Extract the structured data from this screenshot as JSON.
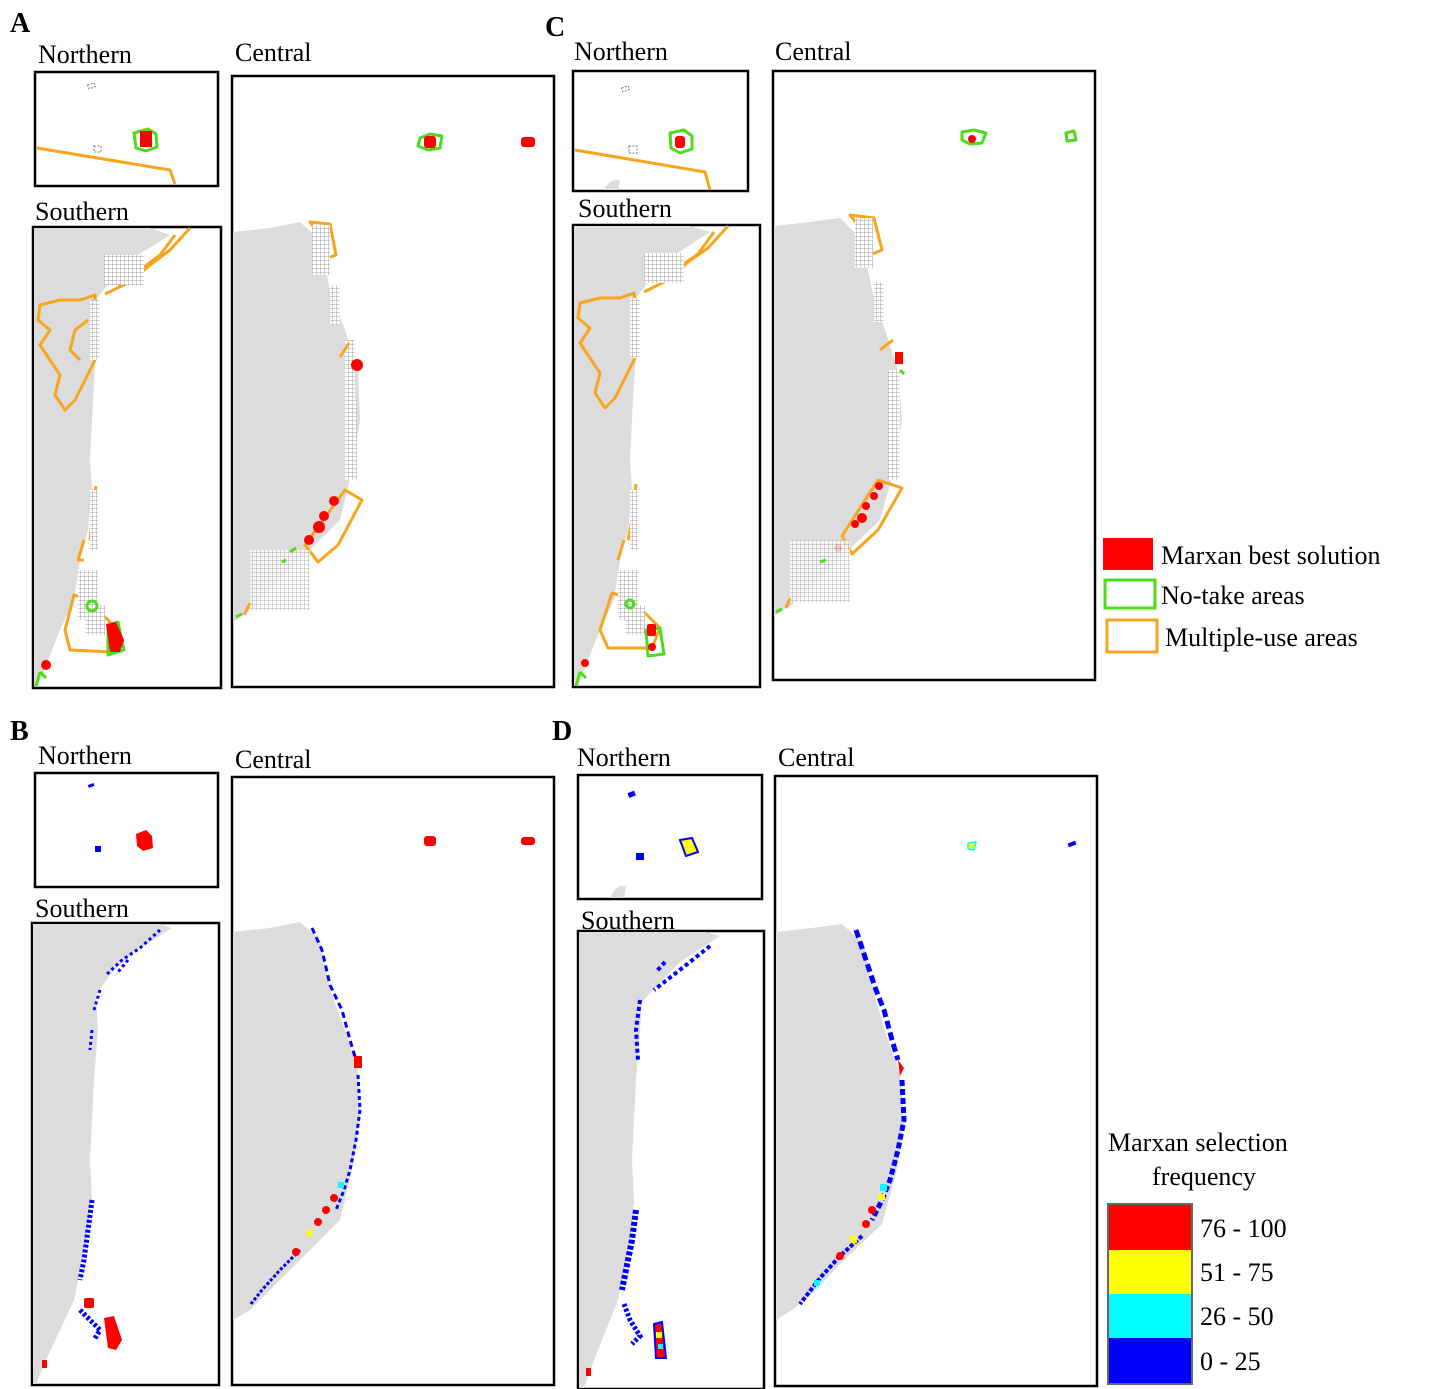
{
  "panels": [
    {
      "id": "A",
      "letter": "A",
      "northern": "Northern",
      "southern": "Southern",
      "central": "Central"
    },
    {
      "id": "B",
      "letter": "B",
      "northern": "Northern",
      "southern": "Southern",
      "central": "Central"
    },
    {
      "id": "C",
      "letter": "C",
      "northern": "Northern",
      "southern": "Southern",
      "central": "Central"
    },
    {
      "id": "D",
      "letter": "D",
      "northern": "Northern",
      "southern": "Southern",
      "central": "Central"
    }
  ],
  "legend_solution": {
    "items": [
      {
        "label": "Marxan best solution",
        "color": "#ff0000"
      },
      {
        "label": "No-take areas",
        "color": "#4cdc19"
      },
      {
        "label": "Multiple-use areas",
        "color": "#f7a51d"
      }
    ]
  },
  "legend_frequency": {
    "title_line1": "Marxan selection",
    "title_line2": "frequency",
    "classes": [
      {
        "label": "76 - 100",
        "color": "#ff0000"
      },
      {
        "label": "51 - 75",
        "color": "#ffff00"
      },
      {
        "label": "26 - 50",
        "color": "#00ffff"
      },
      {
        "label": "0 - 25",
        "color": "#0000ff"
      }
    ]
  },
  "colors": {
    "land": "#dcdcdc",
    "planning_unit": "#777777",
    "frame": "#000000"
  }
}
